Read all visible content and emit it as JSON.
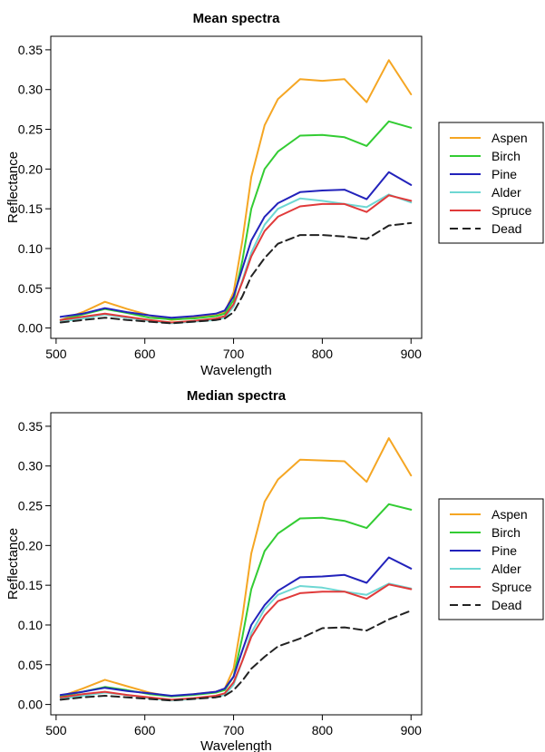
{
  "chart_data": [
    {
      "type": "line",
      "title": "Mean spectra",
      "xlabel": "Wavelength",
      "ylabel": "Reflectance",
      "xlim": [
        500,
        900
      ],
      "ylim": [
        0,
        0.35
      ],
      "xticks": [
        "500",
        "600",
        "700",
        "800",
        "900"
      ],
      "yticks": [
        "0.00",
        "0.05",
        "0.10",
        "0.15",
        "0.20",
        "0.25",
        "0.30",
        "0.35"
      ],
      "legend_position": "right",
      "x": [
        505,
        530,
        555,
        580,
        605,
        630,
        655,
        680,
        690,
        700,
        710,
        720,
        735,
        750,
        775,
        800,
        825,
        850,
        875,
        900
      ],
      "series": [
        {
          "name": "Aspen",
          "color": "#f5a623",
          "dash": "solid",
          "values": [
            0.01,
            0.02,
            0.033,
            0.024,
            0.016,
            0.01,
            0.013,
            0.016,
            0.02,
            0.045,
            0.11,
            0.19,
            0.255,
            0.288,
            0.313,
            0.311,
            0.313,
            0.284,
            0.337,
            0.294
          ]
        },
        {
          "name": "Birch",
          "color": "#33cc33",
          "dash": "solid",
          "values": [
            0.01,
            0.017,
            0.024,
            0.019,
            0.013,
            0.011,
            0.012,
            0.015,
            0.018,
            0.035,
            0.085,
            0.15,
            0.2,
            0.222,
            0.242,
            0.243,
            0.24,
            0.229,
            0.26,
            0.252
          ]
        },
        {
          "name": "Pine",
          "color": "#2222bb",
          "dash": "solid",
          "values": [
            0.014,
            0.018,
            0.025,
            0.02,
            0.016,
            0.013,
            0.015,
            0.018,
            0.022,
            0.04,
            0.075,
            0.11,
            0.14,
            0.157,
            0.171,
            0.173,
            0.174,
            0.162,
            0.196,
            0.18
          ]
        },
        {
          "name": "Alder",
          "color": "#6ed7d3",
          "dash": "solid",
          "values": [
            0.008,
            0.012,
            0.017,
            0.013,
            0.009,
            0.006,
            0.008,
            0.01,
            0.013,
            0.027,
            0.06,
            0.095,
            0.13,
            0.15,
            0.163,
            0.16,
            0.156,
            0.152,
            0.168,
            0.158
          ]
        },
        {
          "name": "Spruce",
          "color": "#e03a3a",
          "dash": "solid",
          "values": [
            0.01,
            0.014,
            0.018,
            0.014,
            0.01,
            0.007,
            0.009,
            0.012,
            0.015,
            0.03,
            0.058,
            0.09,
            0.122,
            0.14,
            0.153,
            0.156,
            0.156,
            0.146,
            0.167,
            0.16
          ]
        },
        {
          "name": "Dead",
          "color": "#222222",
          "dash": "dashed",
          "values": [
            0.007,
            0.01,
            0.013,
            0.01,
            0.008,
            0.006,
            0.008,
            0.01,
            0.012,
            0.02,
            0.04,
            0.065,
            0.088,
            0.106,
            0.117,
            0.117,
            0.115,
            0.112,
            0.129,
            0.132
          ]
        }
      ]
    },
    {
      "type": "line",
      "title": "Median spectra",
      "xlabel": "Wavelength",
      "ylabel": "Reflectance",
      "xlim": [
        500,
        900
      ],
      "ylim": [
        0,
        0.35
      ],
      "xticks": [
        "500",
        "600",
        "700",
        "800",
        "900"
      ],
      "yticks": [
        "0.00",
        "0.05",
        "0.10",
        "0.15",
        "0.20",
        "0.25",
        "0.30",
        "0.35"
      ],
      "legend_position": "right",
      "x": [
        505,
        530,
        555,
        580,
        605,
        630,
        655,
        680,
        690,
        700,
        710,
        720,
        735,
        750,
        775,
        800,
        825,
        850,
        875,
        900
      ],
      "series": [
        {
          "name": "Aspen",
          "color": "#f5a623",
          "dash": "solid",
          "values": [
            0.01,
            0.02,
            0.031,
            0.023,
            0.015,
            0.01,
            0.013,
            0.016,
            0.02,
            0.045,
            0.11,
            0.19,
            0.255,
            0.283,
            0.308,
            0.307,
            0.306,
            0.28,
            0.335,
            0.288
          ]
        },
        {
          "name": "Birch",
          "color": "#33cc33",
          "dash": "solid",
          "values": [
            0.01,
            0.016,
            0.022,
            0.018,
            0.013,
            0.01,
            0.012,
            0.015,
            0.018,
            0.035,
            0.085,
            0.145,
            0.193,
            0.215,
            0.234,
            0.235,
            0.231,
            0.222,
            0.252,
            0.245
          ]
        },
        {
          "name": "Pine",
          "color": "#2222bb",
          "dash": "solid",
          "values": [
            0.012,
            0.016,
            0.021,
            0.017,
            0.014,
            0.011,
            0.013,
            0.016,
            0.02,
            0.035,
            0.068,
            0.1,
            0.125,
            0.143,
            0.16,
            0.161,
            0.163,
            0.153,
            0.185,
            0.171
          ]
        },
        {
          "name": "Alder",
          "color": "#6ed7d3",
          "dash": "solid",
          "values": [
            0.007,
            0.011,
            0.015,
            0.012,
            0.008,
            0.005,
            0.007,
            0.01,
            0.012,
            0.025,
            0.055,
            0.09,
            0.12,
            0.138,
            0.149,
            0.147,
            0.142,
            0.138,
            0.152,
            0.146
          ]
        },
        {
          "name": "Spruce",
          "color": "#e03a3a",
          "dash": "solid",
          "values": [
            0.009,
            0.013,
            0.016,
            0.012,
            0.009,
            0.006,
            0.008,
            0.011,
            0.014,
            0.028,
            0.055,
            0.085,
            0.112,
            0.13,
            0.14,
            0.142,
            0.142,
            0.133,
            0.151,
            0.145
          ]
        },
        {
          "name": "Dead",
          "color": "#222222",
          "dash": "dashed",
          "values": [
            0.006,
            0.009,
            0.011,
            0.009,
            0.007,
            0.005,
            0.007,
            0.009,
            0.011,
            0.018,
            0.03,
            0.045,
            0.06,
            0.073,
            0.083,
            0.096,
            0.097,
            0.093,
            0.107,
            0.118
          ]
        }
      ]
    }
  ]
}
